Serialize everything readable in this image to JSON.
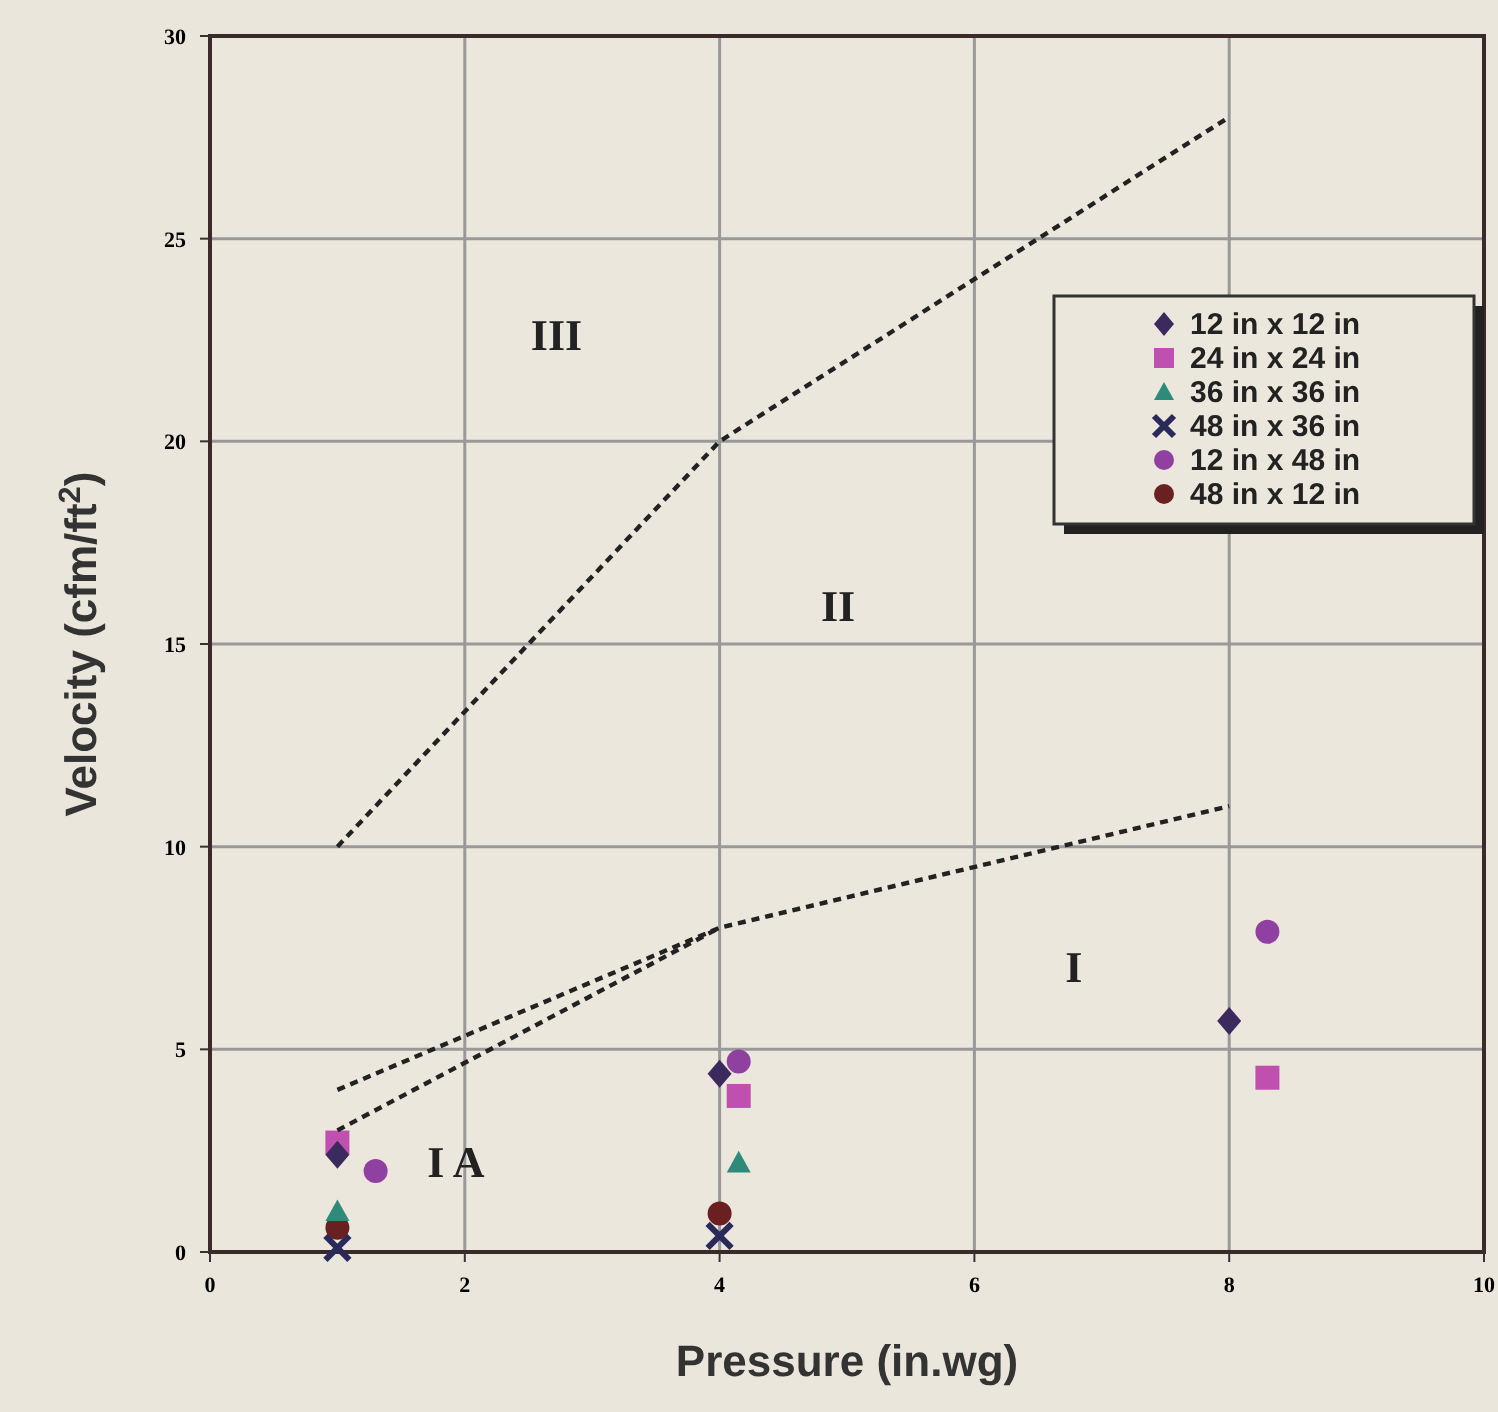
{
  "chart_data": {
    "type": "scatter",
    "xlabel": "Pressure (in.wg)",
    "ylabel": "Velocity (cfm/ft$^{2}$)",
    "xlim": [
      0,
      10
    ],
    "xticks": [
      0,
      2,
      4,
      6,
      8,
      10
    ],
    "ylim": [
      0,
      30
    ],
    "yticks": [
      0,
      5,
      10,
      15,
      20,
      25,
      30
    ],
    "grid": true,
    "legend": "top right",
    "series": [
      {
        "type": "line",
        "x": [
          1,
          4,
          8
        ],
        "values": [
          10,
          20,
          28
        ],
        "color": "#222222",
        "line_style": "dashed",
        "marker": "none"
      },
      {
        "type": "line",
        "x": [
          1,
          4,
          8
        ],
        "values": [
          4,
          8,
          11
        ],
        "color": "#222222",
        "line_style": "dashed",
        "marker": "none"
      },
      {
        "type": "line",
        "x": [
          1,
          4
        ],
        "values": [
          3,
          8
        ],
        "color": "#222222",
        "line_style": "dashed",
        "marker": "none"
      },
      {
        "name": "12 in x 12 in",
        "x": [
          1,
          4,
          8
        ],
        "values": [
          2.4,
          4.4,
          5.7
        ],
        "color": "#3b2a5e",
        "marker": "diamond"
      },
      {
        "name": "24 in x 24 in",
        "x": [
          1,
          4.15,
          8.3
        ],
        "values": [
          2.7,
          3.85,
          4.3
        ],
        "color": "#c050b0",
        "marker": "square"
      },
      {
        "name": "36 in x 36 in",
        "x": [
          1,
          4.15
        ],
        "values": [
          1.0,
          2.2
        ],
        "color": "#2e8b7a",
        "marker": "triangle"
      },
      {
        "name": "48 in x 36 in",
        "x": [
          1,
          4
        ],
        "values": [
          0.1,
          0.4
        ],
        "color": "#2a2a5a",
        "marker": "cross"
      },
      {
        "name": "12 in x 48 in",
        "x": [
          1.3,
          4.15,
          8.3
        ],
        "values": [
          2.0,
          4.7,
          7.9
        ],
        "color": "#9040a0",
        "marker": "circle"
      },
      {
        "name": "48 in x 12 in",
        "x": [
          1,
          4
        ],
        "values": [
          0.6,
          0.95
        ],
        "color": "#6a2020",
        "marker": "circle"
      }
    ],
    "annotations": [
      "III",
      "II",
      "I",
      "I A"
    ]
  }
}
